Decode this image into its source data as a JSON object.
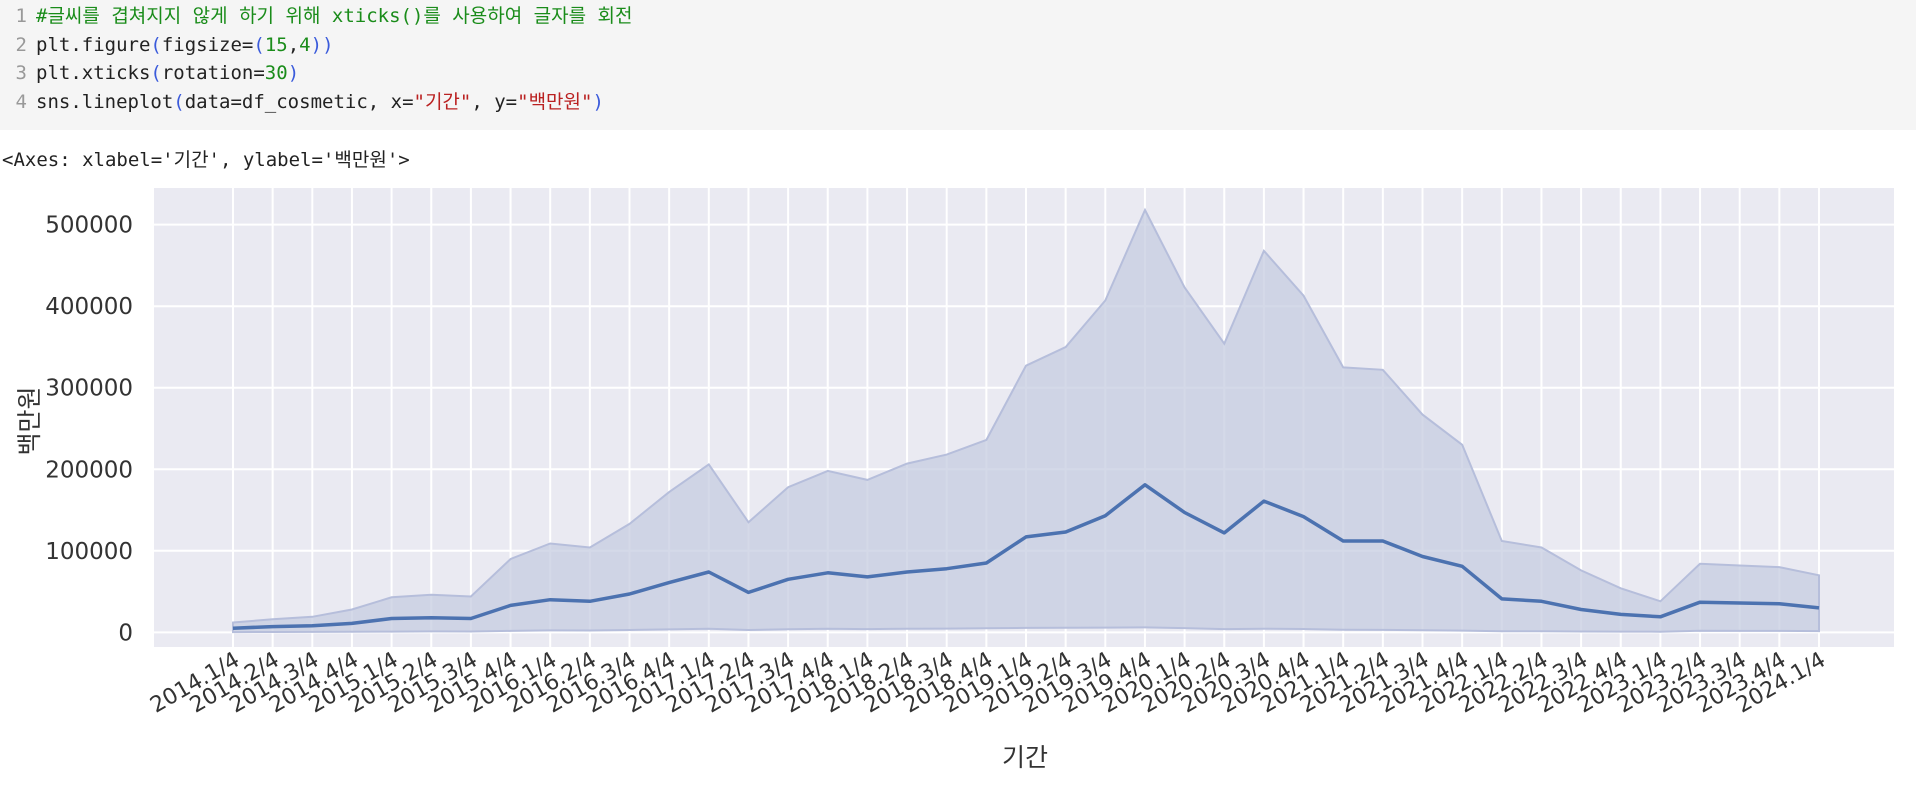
{
  "code_cell": {
    "lines": [
      {
        "num": "1",
        "text": "#글씨를 겹쳐지지 않게 하기 위해 xticks()를 사용하여 글자를 회전"
      },
      {
        "num": "2",
        "text": "plt.figure(figsize=(15,4))"
      },
      {
        "num": "3",
        "text": "plt.xticks(rotation=30)"
      },
      {
        "num": "4",
        "text": "sns.lineplot(data=df_cosmetic, x=\"기간\", y=\"백만원\")"
      }
    ]
  },
  "output": {
    "repr": "<Axes: xlabel='기간', ylabel='백만원'>"
  },
  "colors": {
    "plot_background": "#eaeaf2",
    "grid": "#ffffff",
    "line": "#4c72b0",
    "band": "#c6cce0",
    "band_edge": "#b6bedb",
    "tick_text": "#333333",
    "comment": "#1a8c1a",
    "string": "#ba2121",
    "paren": "#3b5bdb"
  },
  "chart_data": {
    "type": "line",
    "title": "",
    "xlabel": "기간",
    "ylabel": "백만원",
    "ylim": [
      -18000,
      545000
    ],
    "yticks": [
      0,
      100000,
      200000,
      300000,
      400000,
      500000
    ],
    "ytick_labels": [
      "0",
      "100000",
      "200000",
      "300000",
      "400000",
      "500000"
    ],
    "grid": true,
    "x_tick_rotation": 30,
    "categories": [
      "2014.1/4",
      "2014.2/4",
      "2014.3/4",
      "2014.4/4",
      "2015.1/4",
      "2015.2/4",
      "2015.3/4",
      "2015.4/4",
      "2016.1/4",
      "2016.2/4",
      "2016.3/4",
      "2016.4/4",
      "2017.1/4",
      "2017.2/4",
      "2017.3/4",
      "2017.4/4",
      "2018.1/4",
      "2018.2/4",
      "2018.3/4",
      "2018.4/4",
      "2019.1/4",
      "2019.2/4",
      "2019.3/4",
      "2019.4/4",
      "2020.1/4",
      "2020.2/4",
      "2020.3/4",
      "2020.4/4",
      "2021.1/4",
      "2021.2/4",
      "2021.3/4",
      "2021.4/4",
      "2022.1/4",
      "2022.2/4",
      "2022.3/4",
      "2022.4/4",
      "2023.1/4",
      "2023.2/4",
      "2023.3/4",
      "2023.4/4",
      "2024.1/4"
    ],
    "series": [
      {
        "values": [
          5000,
          7000,
          8000,
          11000,
          17000,
          18000,
          17000,
          33000,
          40000,
          38000,
          47000,
          61000,
          74000,
          49000,
          65000,
          73000,
          68000,
          74000,
          78000,
          85000,
          117000,
          123000,
          143000,
          181000,
          147000,
          122000,
          161000,
          142000,
          112000,
          112000,
          93000,
          81000,
          41000,
          38000,
          28000,
          22000,
          19000,
          37000,
          36000,
          35000,
          30000
        ],
        "ci_upper": [
          12000,
          16000,
          19000,
          28000,
          43000,
          46000,
          44000,
          90000,
          109000,
          104000,
          133000,
          172000,
          206000,
          135000,
          178000,
          198000,
          187000,
          207000,
          218000,
          236000,
          327000,
          350000,
          407000,
          518000,
          423000,
          354000,
          468000,
          413000,
          325000,
          322000,
          267000,
          230000,
          112000,
          104000,
          76000,
          54000,
          38000,
          84000,
          82000,
          80000,
          70000
        ],
        "ci_lower": [
          300,
          400,
          500,
          700,
          900,
          1100,
          1000,
          1800,
          2300,
          2200,
          2800,
          3600,
          4400,
          2900,
          3800,
          4400,
          4000,
          4400,
          4600,
          5000,
          5400,
          5600,
          5800,
          6000,
          5200,
          3900,
          4500,
          4100,
          3200,
          3000,
          2500,
          2100,
          1300,
          1200,
          1000,
          900,
          800,
          1900,
          1800,
          1700,
          1500
        ]
      }
    ]
  }
}
